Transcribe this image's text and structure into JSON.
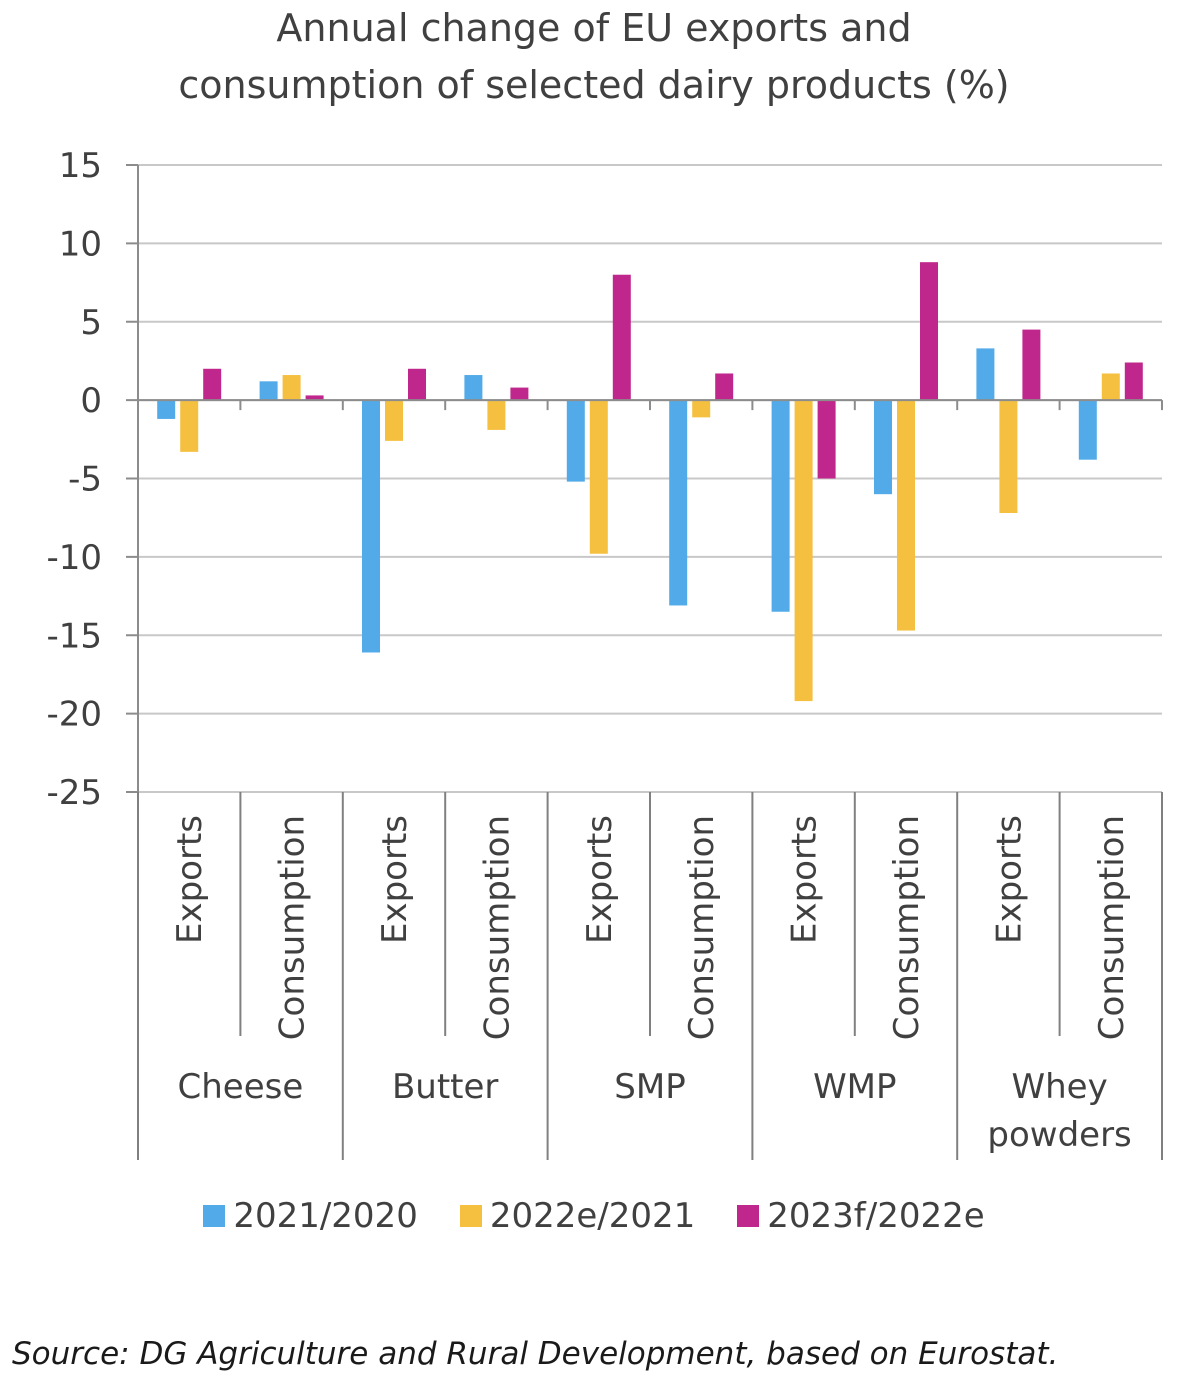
{
  "chart_data": {
    "type": "bar",
    "title_lines": [
      "Annual change of EU exports and",
      "consumption of selected dairy products (%)"
    ],
    "xlabel": "",
    "ylabel": "",
    "ylim": [
      -25,
      15
    ],
    "yticks": [
      15,
      10,
      5,
      0,
      -5,
      -10,
      -15,
      -20,
      -25
    ],
    "ytick_labels": [
      "15",
      "10",
      "5",
      "0",
      "-5",
      "-10",
      "-15",
      "-20",
      "-25"
    ],
    "grid": true,
    "legend_position": "bottom",
    "groups": [
      {
        "label": [
          "Cheese"
        ],
        "categories": [
          "Exports",
          "Consumption"
        ]
      },
      {
        "label": [
          "Butter"
        ],
        "categories": [
          "Exports",
          "Consumption"
        ]
      },
      {
        "label": [
          "SMP"
        ],
        "categories": [
          "Exports",
          "Consumption"
        ]
      },
      {
        "label": [
          "WMP"
        ],
        "categories": [
          "Exports",
          "Consumption"
        ]
      },
      {
        "label": [
          "Whey",
          "powders"
        ],
        "categories": [
          "Exports",
          "Consumption"
        ]
      }
    ],
    "series": [
      {
        "name": "2021/2020",
        "color": "#52abe8",
        "values": [
          -1.2,
          1.2,
          -16.1,
          1.6,
          -5.2,
          -13.1,
          -13.5,
          -6.0,
          3.3,
          -3.8
        ]
      },
      {
        "name": "2022e/2021",
        "color": "#f5c040",
        "values": [
          -3.3,
          1.6,
          -2.6,
          -1.9,
          -9.8,
          -1.1,
          -19.2,
          -14.7,
          -7.2,
          1.7
        ]
      },
      {
        "name": "2023f/2022e",
        "color": "#c0278d",
        "values": [
          2.0,
          0.3,
          2.0,
          0.8,
          8.0,
          1.7,
          -5.0,
          8.8,
          4.5,
          2.4
        ]
      }
    ]
  },
  "source": "Source: DG Agriculture and Rural Development, based on Eurostat."
}
